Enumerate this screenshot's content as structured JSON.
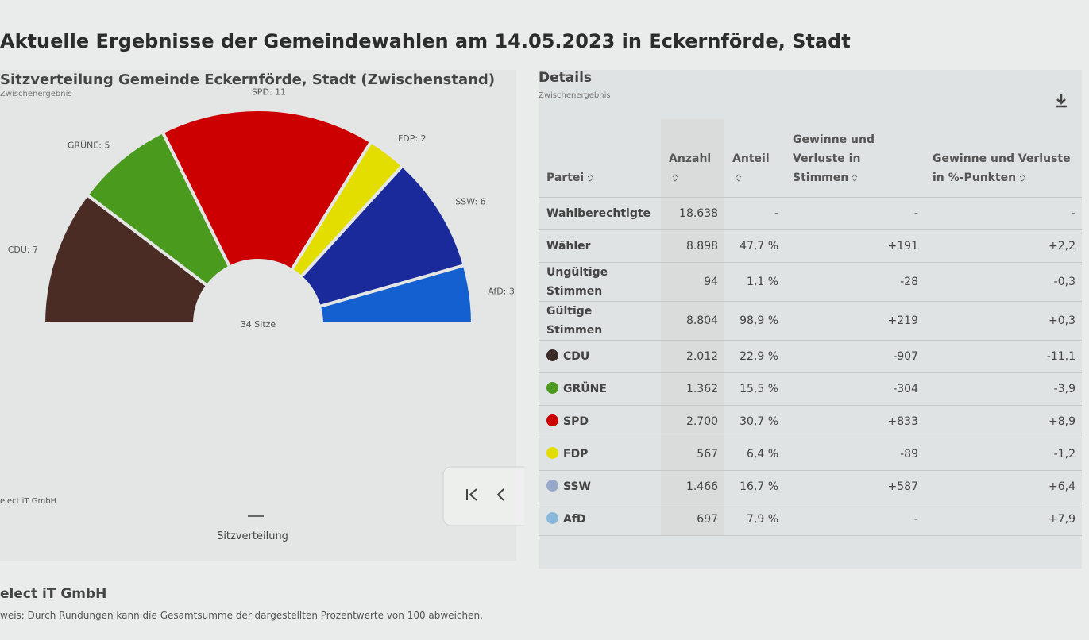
{
  "title": "Aktuelle Ergebnisse der Gemeindewahlen am 14.05.2023 in Eckernförde, Stadt",
  "chart_data": {
    "type": "semicircle",
    "title": "Sitzverteilung Gemeinde Eckernförde, Stadt (Zwischenstand)",
    "subtitle": "Zwischenergebnis",
    "categories": [
      "CDU",
      "GRÜNE",
      "SPD",
      "FDP",
      "SSW",
      "AfD"
    ],
    "values": [
      7,
      5,
      11,
      2,
      6,
      3
    ],
    "value_labels": [
      "CDU: 7",
      "GRÜNE: 5",
      "SPD: 11",
      "FDP: 2",
      "SSW: 6",
      "AfD: 3"
    ],
    "colors": [
      "#4a2c25",
      "#4a9a1e",
      "#cc0000",
      "#e3dd00",
      "#1a2a9a",
      "#1560d0"
    ],
    "center_label": "34 Sitze",
    "credit": "elect iT GmbH",
    "legend": "Sitzverteilung"
  },
  "details": {
    "title": "Details",
    "subtitle": "Zwischenergebnis",
    "table": {
      "header": [
        "Partei",
        "Anzahl",
        "Anteil",
        "Gewinne und Verluste in Stimmen",
        "Gewinne und Verluste in %-Punkten"
      ],
      "rows": [
        {
          "cells": [
            "Wahlberechtigte",
            "18.638",
            "-",
            "-",
            "-"
          ]
        },
        {
          "cells": [
            "Wähler",
            "8.898",
            "47,7 %",
            "+191",
            "+2,2"
          ]
        },
        {
          "cells": [
            "Ungültige Stimmen",
            "94",
            "1,1 %",
            "-28",
            "-0,3"
          ]
        },
        {
          "cells": [
            "Gültige Stimmen",
            "8.804",
            "98,9 %",
            "+219",
            "+0,3"
          ]
        },
        {
          "cells": [
            "CDU",
            "2.012",
            "22,9 %",
            "-907",
            "-11,1"
          ],
          "color": "#3a2a26"
        },
        {
          "cells": [
            "GRÜNE",
            "1.362",
            "15,5 %",
            "-304",
            "-3,9"
          ],
          "color": "#4a9a1e"
        },
        {
          "cells": [
            "SPD",
            "2.700",
            "30,7 %",
            "+833",
            "+8,9"
          ],
          "color": "#cc0000"
        },
        {
          "cells": [
            "FDP",
            "567",
            "6,4 %",
            "-89",
            "-1,2"
          ],
          "color": "#e3dd00"
        },
        {
          "cells": [
            "SSW",
            "1.466",
            "16,7 %",
            "+587",
            "+6,4"
          ],
          "color": "#98a8c8"
        },
        {
          "cells": [
            "AfD",
            "697",
            "7,9 %",
            "-",
            "+7,9"
          ],
          "color": "#8ab8dc"
        }
      ]
    }
  },
  "footer": {
    "company": "elect iT GmbH",
    "note": "weis: Durch Rundungen kann die Gesamtsumme der dargestellten Prozentwerte von 100 abweichen."
  }
}
